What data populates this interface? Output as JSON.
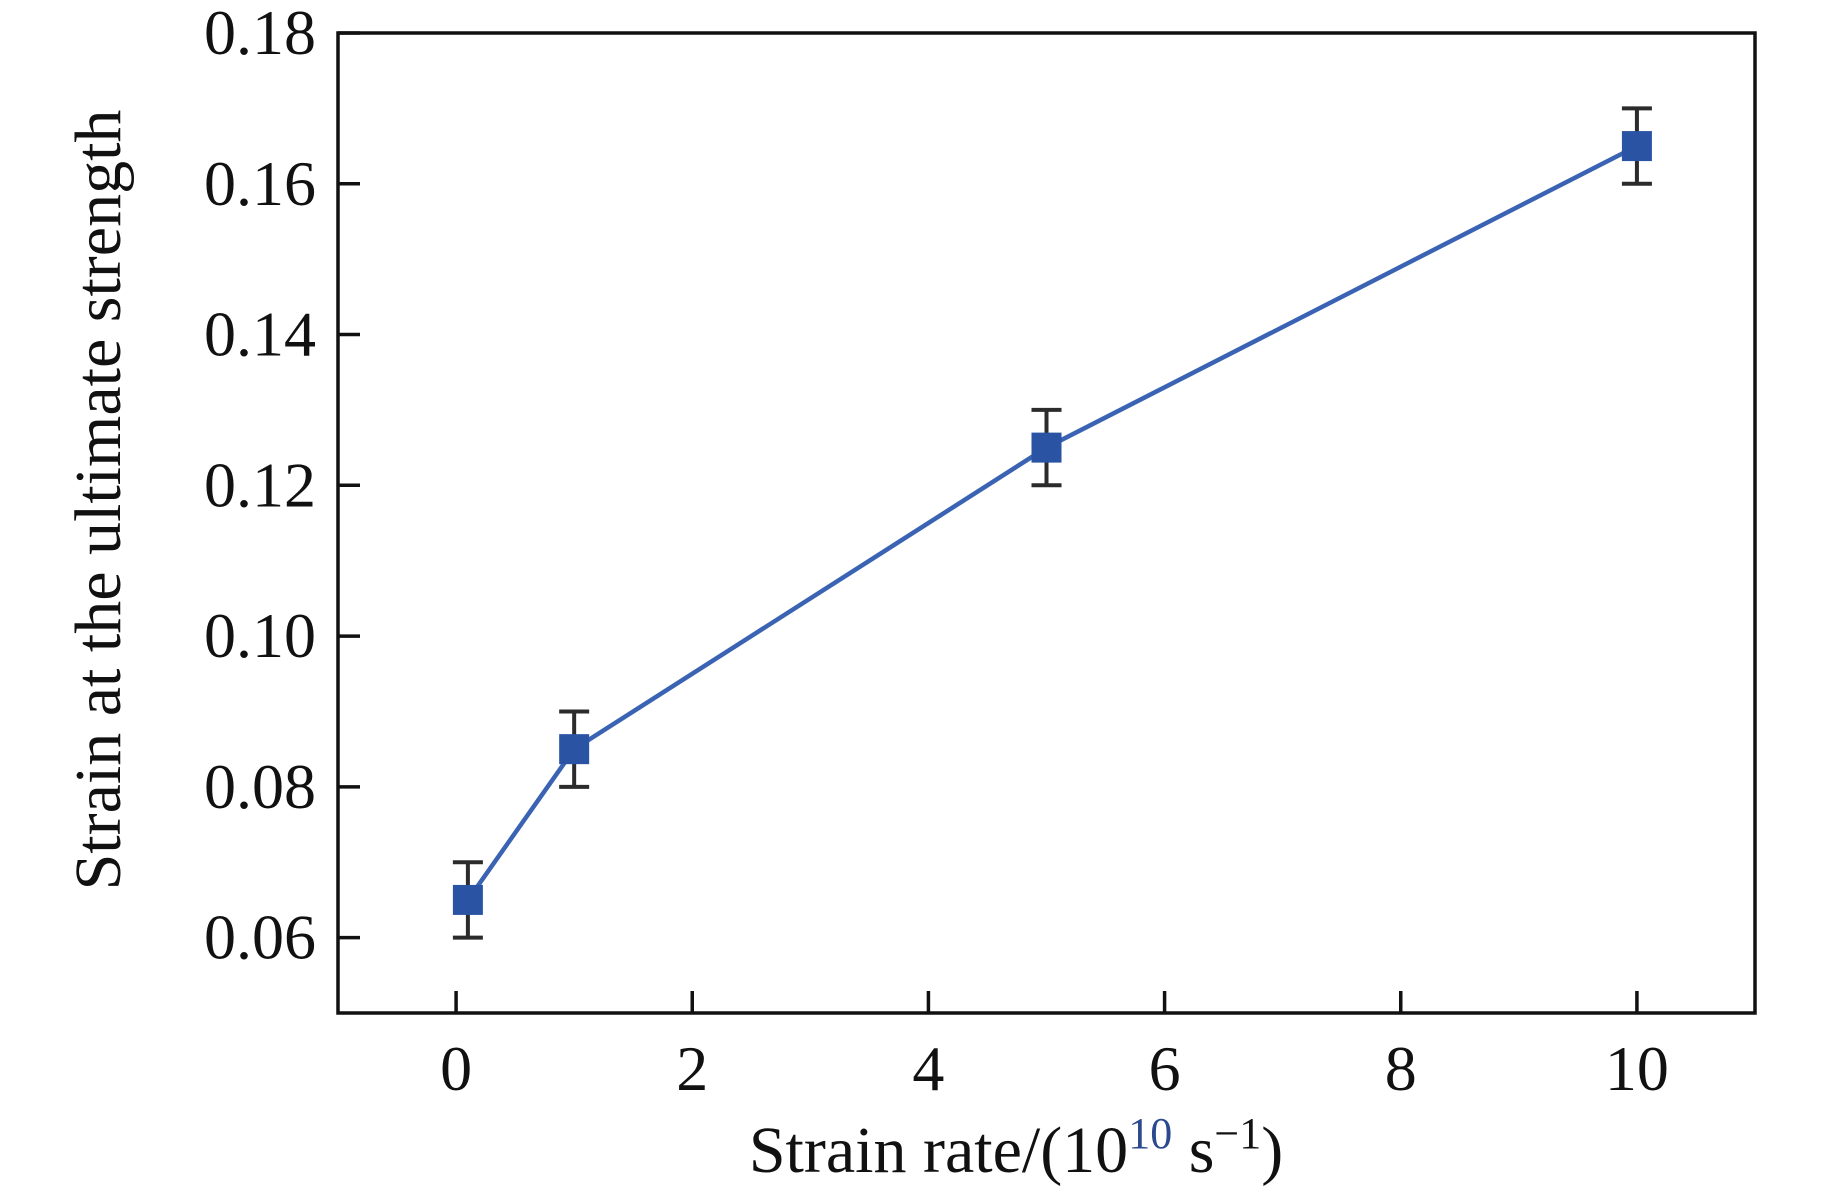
{
  "chart_data": {
    "type": "line",
    "title": "",
    "ylabel": "Strain at the ultimate strength",
    "xlabel_plain": "Strain rate/(10^10 s^-1)",
    "xlabel_parts": [
      {
        "text": "Strain rate/(10",
        "sup": false,
        "color": "#111111"
      },
      {
        "text": "10",
        "sup": true,
        "color": "#2b4a8e"
      },
      {
        "text": " s",
        "sup": false,
        "color": "#111111"
      },
      {
        "text": "−1",
        "sup": true,
        "color": "#111111"
      },
      {
        "text": ")",
        "sup": false,
        "color": "#111111"
      }
    ],
    "series": [
      {
        "name": "strain-at-ultimate-strength",
        "x": [
          0.1,
          1,
          5,
          10
        ],
        "y": [
          0.065,
          0.085,
          0.125,
          0.165
        ],
        "y_err": [
          0.005,
          0.005,
          0.005,
          0.005
        ],
        "marker": "square",
        "marker_color": "#2a53a4",
        "line_color": "#3b63b3",
        "error_color": "#2b2b2b"
      }
    ],
    "xlim": [
      -1,
      11
    ],
    "ylim": [
      0.05,
      0.18
    ],
    "xticks": [
      {
        "v": 0,
        "label": "0"
      },
      {
        "v": 2,
        "label": "2"
      },
      {
        "v": 4,
        "label": "4"
      },
      {
        "v": 6,
        "label": "6"
      },
      {
        "v": 8,
        "label": "8"
      },
      {
        "v": 10,
        "label": "10"
      }
    ],
    "yticks": [
      {
        "v": 0.06,
        "label": "0.06"
      },
      {
        "v": 0.08,
        "label": "0.08"
      },
      {
        "v": 0.1,
        "label": "0.10"
      },
      {
        "v": 0.12,
        "label": "0.12"
      },
      {
        "v": 0.14,
        "label": "0.14"
      },
      {
        "v": 0.16,
        "label": "0.16"
      },
      {
        "v": 0.18,
        "label": "0.18"
      }
    ],
    "grid": false,
    "legend": null,
    "axis_color": "#111111",
    "tick_label_color": "#111111"
  }
}
